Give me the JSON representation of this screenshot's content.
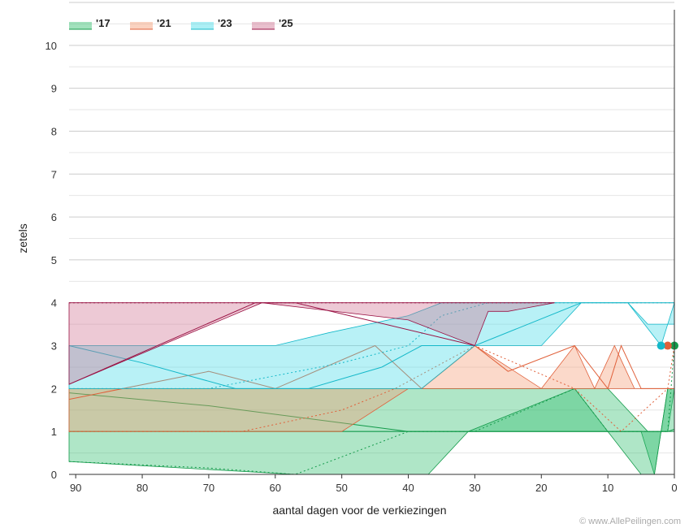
{
  "chart_data": {
    "type": "area",
    "xlabel": "aantal dagen voor de verkiezingen",
    "ylabel": "zetels",
    "xlim": [
      91,
      0
    ],
    "ylim": [
      0,
      11
    ],
    "x_ticks": [
      90,
      80,
      70,
      60,
      50,
      40,
      30,
      20,
      10,
      0
    ],
    "y_ticks": [
      0,
      1,
      2,
      3,
      4,
      5,
      6,
      7,
      8,
      9,
      10
    ],
    "grid": true,
    "legend_position": "top-left",
    "series": [
      {
        "name": "'17",
        "fill": "#2ebd6b",
        "line": "#139a4a",
        "band_upper": [
          [
            91,
            2
          ],
          [
            38,
            2
          ],
          [
            30,
            2
          ],
          [
            20,
            2
          ],
          [
            10,
            2
          ],
          [
            4,
            1
          ],
          [
            1,
            1
          ],
          [
            0,
            2
          ]
        ],
        "band_lower": [
          [
            91,
            1
          ],
          [
            60,
            1
          ],
          [
            50,
            1
          ],
          [
            40,
            1
          ],
          [
            35,
            1
          ],
          [
            30,
            1
          ],
          [
            20,
            1
          ],
          [
            10,
            1
          ],
          [
            5,
            1
          ],
          [
            3,
            0
          ],
          [
            1,
            2
          ],
          [
            0,
            2
          ]
        ],
        "extra_band": [
          [
            91,
            0.3
          ],
          [
            57,
            0
          ],
          [
            52,
            0
          ],
          [
            37,
            0
          ],
          [
            31,
            1
          ],
          [
            15,
            2
          ],
          [
            10,
            1
          ],
          [
            5,
            0
          ],
          [
            3,
            0
          ],
          [
            2,
            1
          ],
          [
            1,
            2
          ],
          [
            0,
            2
          ]
        ],
        "lines": [
          [
            [
              91,
              1.9
            ],
            [
              70,
              1.6
            ],
            [
              50,
              1.2
            ],
            [
              40,
              1
            ],
            [
              30,
              1
            ],
            [
              20,
              1
            ],
            [
              10,
              1
            ],
            [
              1,
              1
            ],
            [
              0,
              1.05
            ]
          ],
          [
            [
              91,
              0.3
            ],
            [
              70,
              0.15
            ],
            [
              57,
              0
            ],
            [
              45,
              0.7
            ],
            [
              40,
              1
            ],
            [
              30,
              1
            ],
            [
              15,
              2
            ],
            [
              10,
              1
            ],
            [
              1,
              1
            ],
            [
              0,
              3
            ]
          ]
        ],
        "dots": [
          [
            0,
            3
          ]
        ]
      },
      {
        "name": "'21",
        "fill": "#f59c73",
        "line": "#e0603a",
        "band_upper": [
          [
            91,
            2
          ],
          [
            70,
            2
          ],
          [
            50,
            2
          ],
          [
            38,
            2
          ],
          [
            30,
            3
          ],
          [
            20,
            2
          ],
          [
            15,
            3
          ],
          [
            12,
            2
          ],
          [
            9,
            3
          ],
          [
            6,
            2
          ],
          [
            0,
            2
          ]
        ],
        "band_lower": [
          [
            91,
            1
          ],
          [
            50,
            1
          ],
          [
            40,
            2
          ],
          [
            30,
            2
          ],
          [
            20,
            2
          ],
          [
            10,
            2
          ],
          [
            0,
            2
          ]
        ],
        "lines": [
          [
            [
              91,
              1.75
            ],
            [
              70,
              2.4
            ],
            [
              60,
              2
            ],
            [
              45,
              3
            ],
            [
              38,
              2
            ],
            [
              30,
              3
            ],
            [
              25,
              2.4
            ],
            [
              15,
              3
            ],
            [
              10,
              2
            ],
            [
              8,
              3
            ],
            [
              5,
              2
            ],
            [
              0,
              2
            ]
          ],
          [
            [
              91,
              1
            ],
            [
              65,
              1
            ],
            [
              50,
              1.5
            ],
            [
              42,
              2
            ],
            [
              30,
              3
            ],
            [
              15,
              2
            ],
            [
              8,
              1
            ],
            [
              1,
              2
            ],
            [
              0,
              3
            ]
          ]
        ],
        "dots": [
          [
            1,
            3
          ]
        ]
      },
      {
        "name": "'23",
        "fill": "#45dbe8",
        "line": "#14b8c9",
        "band_upper": [
          [
            91,
            3
          ],
          [
            60,
            3
          ],
          [
            52,
            3.3
          ],
          [
            40,
            3.7
          ],
          [
            35,
            4
          ],
          [
            28,
            4
          ],
          [
            20,
            4
          ],
          [
            11,
            4
          ],
          [
            7,
            4
          ],
          [
            4,
            3.5
          ],
          [
            0,
            3.5
          ]
        ],
        "band_lower": [
          [
            91,
            2
          ],
          [
            60,
            2
          ],
          [
            45,
            2
          ],
          [
            38,
            2
          ],
          [
            30,
            3
          ],
          [
            20,
            3
          ],
          [
            14,
            4
          ],
          [
            11,
            4
          ],
          [
            7,
            4
          ],
          [
            2,
            3
          ],
          [
            0,
            4
          ]
        ],
        "lines": [
          [
            [
              91,
              3
            ],
            [
              80,
              2.6
            ],
            [
              66,
              2
            ],
            [
              55,
              2
            ],
            [
              44,
              2.5
            ],
            [
              38,
              3
            ],
            [
              30,
              3
            ],
            [
              14,
              4
            ],
            [
              0,
              4
            ]
          ],
          [
            [
              91,
              2
            ],
            [
              70,
              2
            ],
            [
              50,
              2.6
            ],
            [
              40,
              3
            ],
            [
              35,
              3.7
            ],
            [
              28,
              4
            ],
            [
              0,
              4
            ]
          ]
        ],
        "dots": [
          [
            2,
            3
          ]
        ]
      },
      {
        "name": "'25",
        "fill": "#cf7190",
        "line": "#9a1244",
        "band_upper": [
          [
            91,
            4
          ],
          [
            70,
            4
          ],
          [
            60,
            4
          ],
          [
            45,
            4
          ],
          [
            30,
            4
          ],
          [
            25,
            4
          ],
          [
            18,
            4
          ]
        ],
        "band_lower": [
          [
            91,
            2.1
          ],
          [
            62,
            4
          ],
          [
            40,
            3.6
          ],
          [
            30,
            3
          ],
          [
            28,
            3.8
          ],
          [
            25,
            3.8
          ],
          [
            18,
            4
          ]
        ],
        "lines": [
          [
            [
              91,
              2.1
            ],
            [
              63,
              4
            ],
            [
              57,
              4
            ],
            [
              30,
              3
            ]
          ],
          [
            [
              91,
              4
            ],
            [
              18,
              4
            ]
          ]
        ],
        "dots": []
      }
    ]
  },
  "credit": "© www.AllePeilingen.com"
}
